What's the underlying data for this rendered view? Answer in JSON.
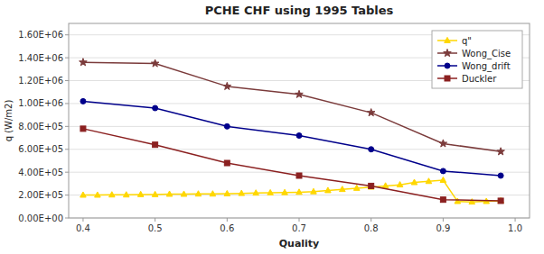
{
  "chart_data": {
    "type": "line",
    "title": "PCHE CHF using 1995 Tables",
    "xlabel": "Quality",
    "ylabel": "q (W/m2)",
    "xlim": [
      0.38,
      1.02
    ],
    "ylim": [
      0,
      1700000
    ],
    "xticks": [
      0.4,
      0.5,
      0.6,
      0.7,
      0.8,
      0.9,
      {
        "value": 1.0,
        "label": "1.0"
      }
    ],
    "yticks": [
      {
        "value": 0,
        "label": "0.00E+00"
      },
      {
        "value": 200000,
        "label": "2.00E+05"
      },
      {
        "value": 400000,
        "label": "4.00E+05"
      },
      {
        "value": 600000,
        "label": "6.00E+05"
      },
      {
        "value": 800000,
        "label": "8.00E+05"
      },
      {
        "value": 1000000,
        "label": "1.00E+06"
      },
      {
        "value": 1200000,
        "label": "1.20E+06"
      },
      {
        "value": 1400000,
        "label": "1.40E+06"
      },
      {
        "value": 1600000,
        "label": "1.60E+06"
      }
    ],
    "grid": "y",
    "legend": "upper right",
    "series": [
      {
        "name": "q\"",
        "color": "#FFD700",
        "marker": "triangle",
        "x": [
          0.4,
          0.42,
          0.44,
          0.46,
          0.48,
          0.5,
          0.52,
          0.54,
          0.56,
          0.58,
          0.6,
          0.62,
          0.64,
          0.66,
          0.68,
          0.7,
          0.72,
          0.74,
          0.76,
          0.78,
          0.8,
          0.82,
          0.84,
          0.86,
          0.88,
          0.9,
          0.92,
          0.94,
          0.96,
          0.98
        ],
        "values": [
          200000,
          200000,
          202000,
          202000,
          205000,
          205000,
          208000,
          208000,
          210000,
          210000,
          212000,
          215000,
          218000,
          220000,
          222000,
          225000,
          230000,
          240000,
          250000,
          260000,
          270000,
          280000,
          290000,
          310000,
          320000,
          330000,
          145000,
          140000,
          145000,
          150000
        ]
      },
      {
        "name": "Wong_Cise",
        "color": "#7B3B3B",
        "marker": "star",
        "x": [
          0.4,
          0.5,
          0.6,
          0.7,
          0.8,
          0.9,
          0.98
        ],
        "values": [
          1360000,
          1350000,
          1150000,
          1080000,
          920000,
          650000,
          580000
        ]
      },
      {
        "name": "Wong_drift",
        "color": "#00008B",
        "marker": "circle",
        "x": [
          0.4,
          0.5,
          0.6,
          0.7,
          0.8,
          0.9,
          0.98
        ],
        "values": [
          1020000,
          960000,
          800000,
          720000,
          600000,
          410000,
          370000
        ]
      },
      {
        "name": "Duckler",
        "color": "#8B2020",
        "marker": "square",
        "x": [
          0.4,
          0.5,
          0.6,
          0.7,
          0.8,
          0.9,
          0.98
        ],
        "values": [
          780000,
          640000,
          480000,
          370000,
          280000,
          160000,
          150000
        ]
      }
    ]
  }
}
